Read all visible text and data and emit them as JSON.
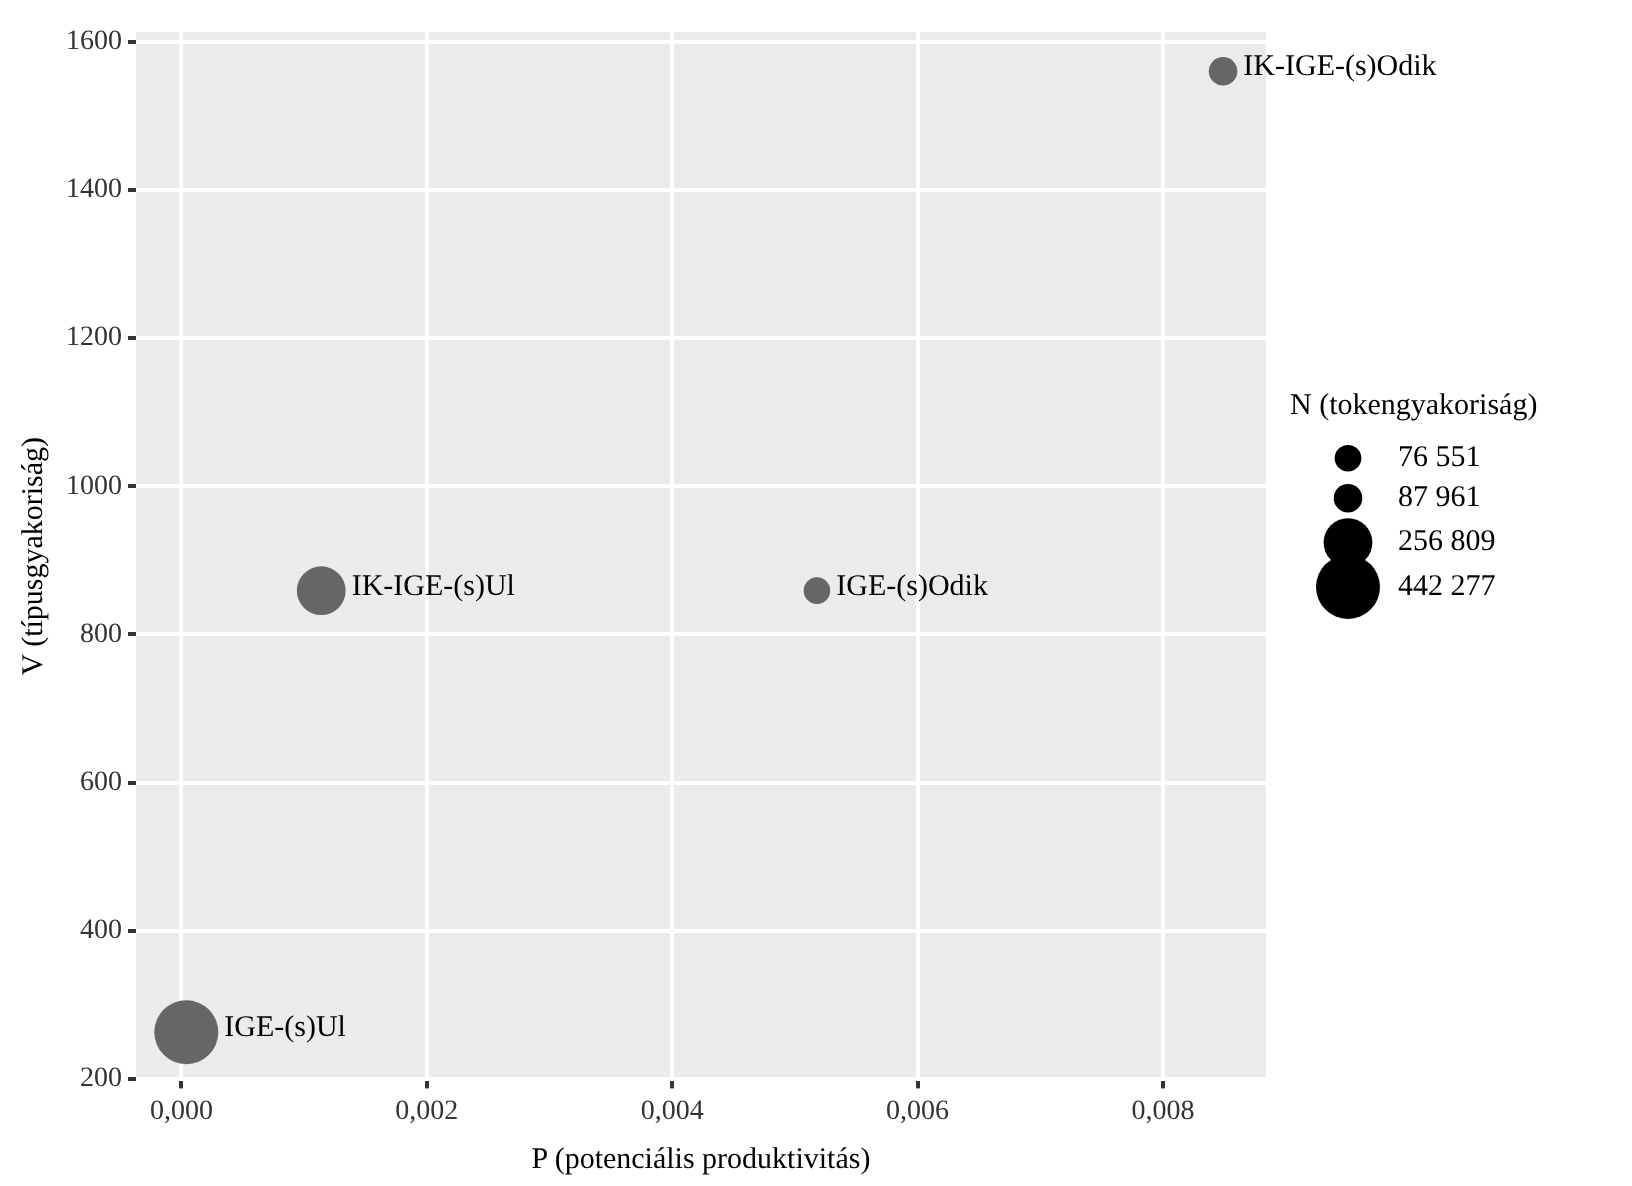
{
  "chart_data": {
    "type": "bubble",
    "xlabel": "P (potenciális produktivitás)",
    "ylabel": "V (típusgyakoriság)",
    "legend_title": "N (tokengyakoriság)",
    "xlim": [
      -0.00037,
      0.00884
    ],
    "ylim": [
      198,
      1613
    ],
    "xticks": [
      {
        "value": 0,
        "label": "0,000"
      },
      {
        "value": 0.002,
        "label": "0,002"
      },
      {
        "value": 0.004,
        "label": "0,004"
      },
      {
        "value": 0.006,
        "label": "0,006"
      },
      {
        "value": 0.008,
        "label": "0,008"
      }
    ],
    "yticks": [
      200,
      400,
      600,
      800,
      1000,
      1200,
      1400,
      1600
    ],
    "size_legend": [
      {
        "value": 76551,
        "label": "76 551"
      },
      {
        "value": 87961,
        "label": "87 961"
      },
      {
        "value": 256809,
        "label": "256 809"
      },
      {
        "value": 442277,
        "label": "442 277"
      }
    ],
    "grid": true,
    "legend": "right",
    "series": [
      {
        "name": "IGE-(s)Ul",
        "color": "#666666",
        "x": [
          4e-05
        ],
        "values": [
          263
        ],
        "sizes": [
          442277
        ]
      },
      {
        "name": "IK-IGE-(s)Ul",
        "color": "#666666",
        "x": [
          0.00114
        ],
        "values": [
          859
        ],
        "sizes": [
          256809
        ]
      },
      {
        "name": "IGE-(s)Odik",
        "color": "#666666",
        "x": [
          0.00518
        ],
        "values": [
          859
        ],
        "sizes": [
          76551
        ]
      },
      {
        "name": "IK-IGE-(s)Odik",
        "color": "#666666",
        "x": [
          0.00849
        ],
        "values": [
          1560
        ],
        "sizes": [
          87961
        ]
      }
    ]
  }
}
